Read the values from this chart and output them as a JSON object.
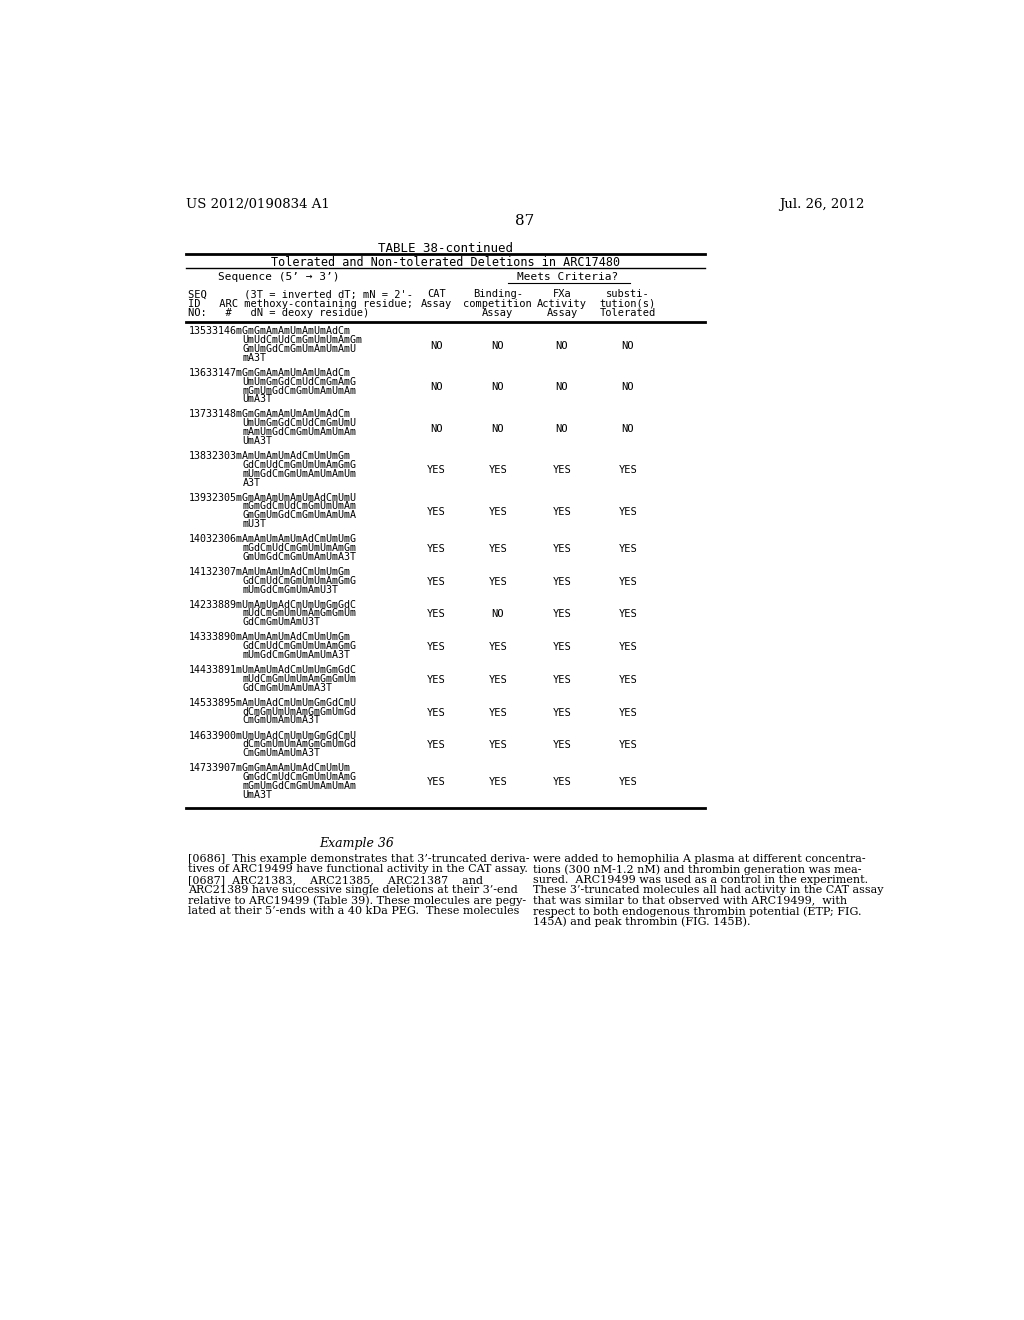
{
  "header_left": "US 2012/0190834 A1",
  "header_right": "Jul. 26, 2012",
  "page_number": "87",
  "table_title": "TABLE 38-continued",
  "table_subtitle": "Tolerated and Non-tolerated Deletions in ARC17480",
  "rows": [
    {
      "seq_lines": [
        "13533146mGmGmAmAmUmAmUmAdCm",
        "UmUdCmUdCmGmUmUmAmGm",
        "GmUmGdCmGmUmAmUmAmU",
        "mA3T"
      ],
      "cat": "NO",
      "binding": "NO",
      "fxa": "NO",
      "subst": "NO"
    },
    {
      "seq_lines": [
        "13633147mGmGmAmAmUmAmUmAdCm",
        "UmUmGmGdCmUdCmGmAmG",
        "mGmUmGdCmGmUmAmUmAm",
        "UmA3T"
      ],
      "cat": "NO",
      "binding": "NO",
      "fxa": "NO",
      "subst": "NO"
    },
    {
      "seq_lines": [
        "13733148mGmGmAmAmUmAmUmAdCm",
        "UmUmGmGdCmUdCmGmUmU",
        "mAmUmGdCmGmUmAmUmAm",
        "UmA3T"
      ],
      "cat": "NO",
      "binding": "NO",
      "fxa": "NO",
      "subst": "NO"
    },
    {
      "seq_lines": [
        "13832303mAmUmAmUmAdCmUmUmGm",
        "GdCmUdCmGmUmUmAmGmG",
        "mUmGdCmGmUmAmUmAmUm",
        "A3T"
      ],
      "cat": "YES",
      "binding": "YES",
      "fxa": "YES",
      "subst": "YES"
    },
    {
      "seq_lines": [
        "13932305mGmAmAmUmAmUmAdCmUmU",
        "mGmGdCmUdCmGmUmUmAm",
        "GmGmUmGdCmGmUmAmUmA",
        "mU3T"
      ],
      "cat": "YES",
      "binding": "YES",
      "fxa": "YES",
      "subst": "YES"
    },
    {
      "seq_lines": [
        "14032306mAmAmUmAmUmAdCmUmUmG",
        "mGdCmUdCmGmUmUmAmGm",
        "GmUmGdCmGmUmAmUmA3T"
      ],
      "cat": "YES",
      "binding": "YES",
      "fxa": "YES",
      "subst": "YES"
    },
    {
      "seq_lines": [
        "14132307mAmUmAmUmAdCmUmUmGm",
        "GdCmUdCmGmUmUmAmGmG",
        "mUmGdCmGmUmAmU3T"
      ],
      "cat": "YES",
      "binding": "YES",
      "fxa": "YES",
      "subst": "YES"
    },
    {
      "seq_lines": [
        "14233889mUmAmUmAdCmUmUmGmGdC",
        "mUdCmGmUmUmAmGmGmUm",
        "GdCmGmUmAmU3T"
      ],
      "cat": "YES",
      "binding": "NO",
      "fxa": "YES",
      "subst": "YES"
    },
    {
      "seq_lines": [
        "14333890mAmUmAmUmAdCmUmUmGm",
        "GdCmUdCmGmUmUmAmGmG",
        "mUmGdCmGmUmAmUmA3T"
      ],
      "cat": "YES",
      "binding": "YES",
      "fxa": "YES",
      "subst": "YES"
    },
    {
      "seq_lines": [
        "14433891mUmAmUmAdCmUmUmGmGdC",
        "mUdCmGmUmUmAmGmGmUm",
        "GdCmGmUmAmUmA3T"
      ],
      "cat": "YES",
      "binding": "YES",
      "fxa": "YES",
      "subst": "YES"
    },
    {
      "seq_lines": [
        "14533895mAmUmAdCmUmUmGmGdCmU",
        "dCmGmUmUmAmGmGmUmGd",
        "CmGmUmAmUmA3T"
      ],
      "cat": "YES",
      "binding": "YES",
      "fxa": "YES",
      "subst": "YES"
    },
    {
      "seq_lines": [
        "14633900mUmUmAdCmUmUmGmGdCmU",
        "dCmGmUmUmAmGmGmUmGd",
        "CmGmUmAmUmA3T"
      ],
      "cat": "YES",
      "binding": "YES",
      "fxa": "YES",
      "subst": "YES"
    },
    {
      "seq_lines": [
        "14733907mGmGmAmAmUmAdCmUmUm",
        "GmGdCmUdCmGmUmUmAmG",
        "mGmUmGdCmGmUmAmUmAm",
        "UmA3T"
      ],
      "cat": "YES",
      "binding": "YES",
      "fxa": "YES",
      "subst": "YES"
    }
  ]
}
